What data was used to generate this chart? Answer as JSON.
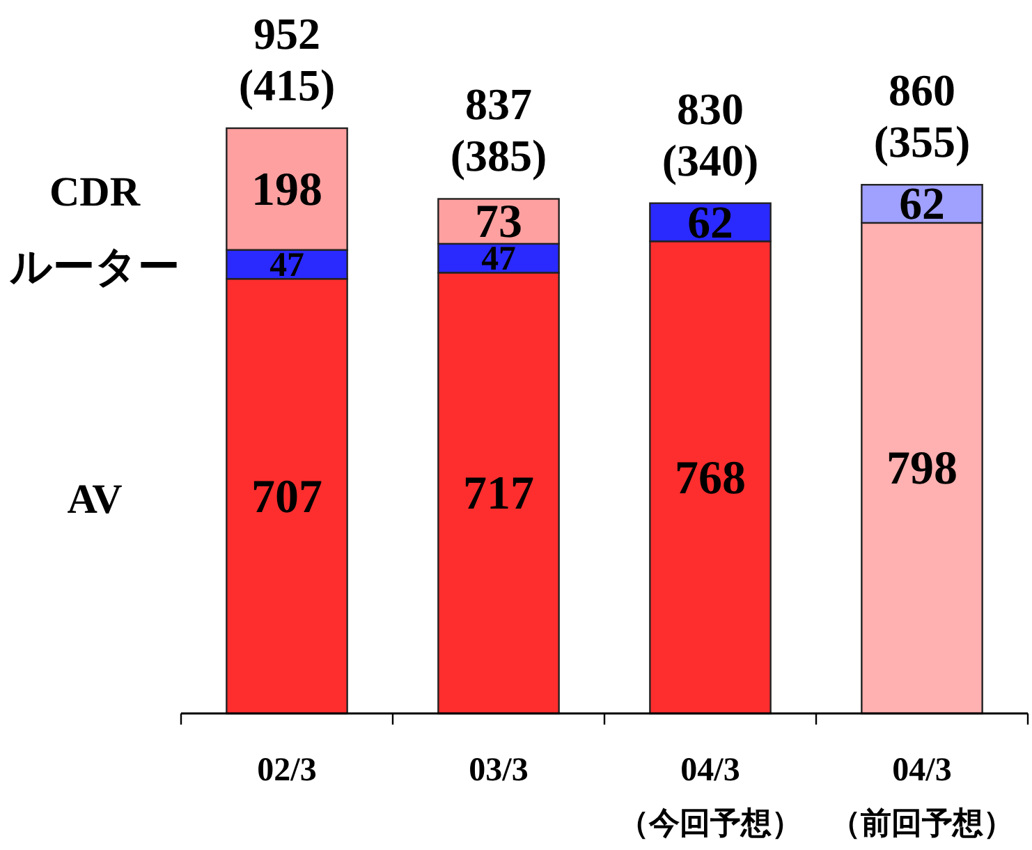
{
  "chart_data": {
    "type": "bar",
    "stacked": true,
    "data_labels": true,
    "categories": [
      "02/3",
      "03/3",
      "04/3",
      "04/3"
    ],
    "series": [
      {
        "name": "AV",
        "colors": [
          "#ff2e2e",
          "#ff2e2e",
          "#ff2e2e",
          "#ffb0b0"
        ],
        "values": [
          707,
          717,
          768,
          798
        ]
      },
      {
        "name": "ルーター",
        "colors": [
          "#2a2aff",
          "#2a2aff",
          "#2a2aff",
          "#a0a0ff"
        ],
        "values": [
          47,
          47,
          62,
          62
        ]
      },
      {
        "name": "CDR",
        "color": "#ffa0a0",
        "values": [
          198,
          73,
          null,
          null
        ]
      }
    ],
    "totals": [
      "952",
      "837",
      "830",
      "860"
    ],
    "annotations": [
      "(415)",
      "(385)",
      "(340)",
      "(355)",
      "（今回予想）",
      "（前回予想）"
    ]
  }
}
